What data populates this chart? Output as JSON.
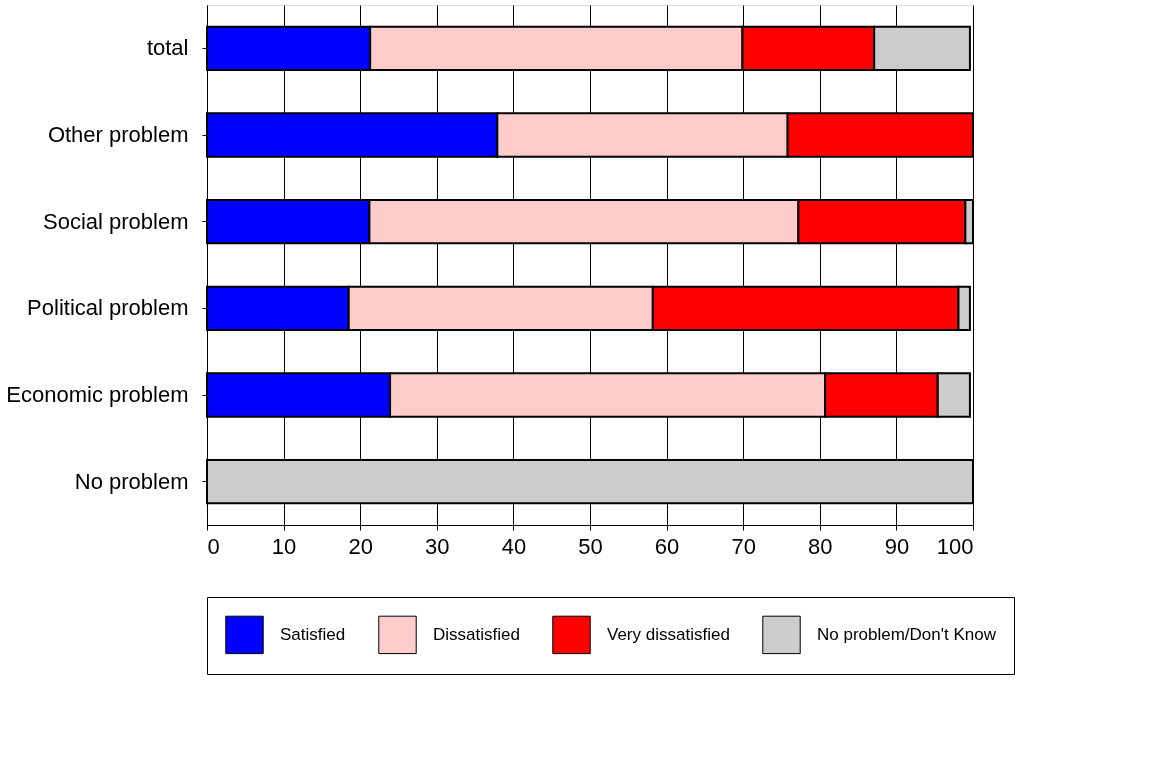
{
  "chart_data": {
    "type": "bar",
    "orientation": "horizontal",
    "stacked": true,
    "categories": [
      "total",
      "Other problem",
      "Social problem",
      "Political problem",
      "Economic problem",
      "No problem"
    ],
    "series": [
      {
        "name": "Satisfied",
        "color": "#0000ff",
        "values": [
          21.3,
          37.9,
          21.2,
          18.5,
          23.9,
          null
        ]
      },
      {
        "name": "Dissatisfied",
        "color": "#ffcccc",
        "values": [
          48.6,
          37.9,
          56.0,
          39.7,
          56.8,
          null
        ]
      },
      {
        "name": "Very dissatisfied",
        "color": "#ff0000",
        "values": [
          17.2,
          24.2,
          21.8,
          39.9,
          14.7,
          null
        ]
      },
      {
        "name": "No problem/Don't Know",
        "color": "#cccccc",
        "values": [
          12.5,
          null,
          1.0,
          1.5,
          4.2,
          100
        ]
      }
    ],
    "xlim": [
      0,
      100
    ],
    "xticks": [
      0,
      10,
      20,
      30,
      40,
      50,
      60,
      70,
      80,
      90,
      100
    ],
    "grid": "x",
    "legend": "bottom"
  }
}
